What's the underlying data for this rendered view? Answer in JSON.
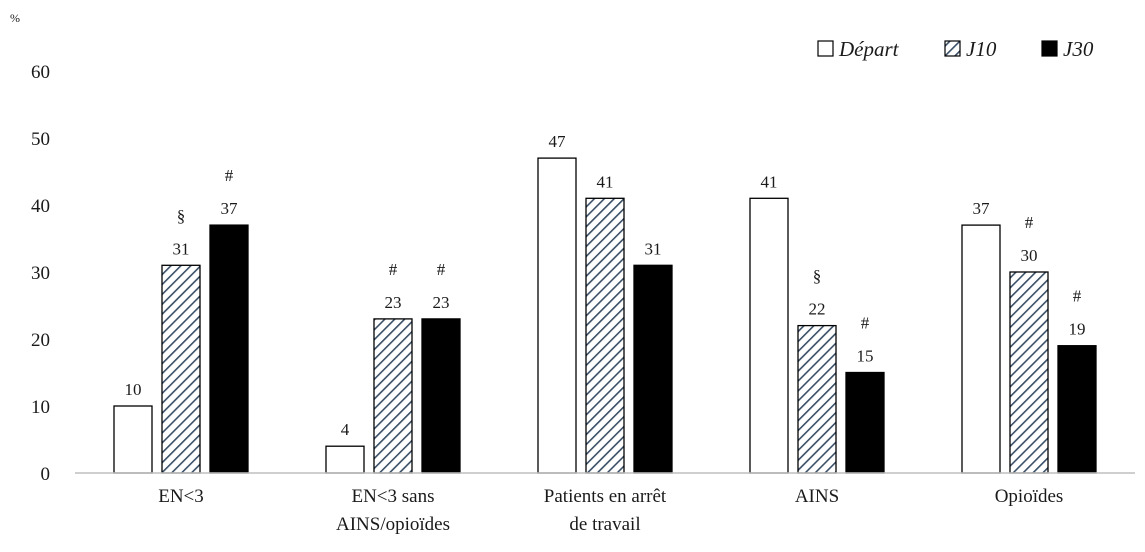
{
  "chart_data": {
    "type": "bar",
    "ylabel": "%",
    "ylim": [
      0,
      60
    ],
    "yticks": [
      0,
      10,
      20,
      30,
      40,
      50,
      60
    ],
    "grid": false,
    "legend": "top-right",
    "categories": [
      [
        "EN<3"
      ],
      [
        "EN<3 sans",
        "AINS/opioïdes"
      ],
      [
        "Patients en arrêt",
        "de travail"
      ],
      [
        "AINS"
      ],
      [
        "Opioïdes"
      ]
    ],
    "series": [
      {
        "name": "Départ",
        "style": "white",
        "color": "#ffffff",
        "values": [
          10,
          4,
          47,
          41,
          37
        ],
        "labels": [
          "10",
          "4",
          "47",
          "41",
          "37"
        ],
        "markers": [
          "",
          "",
          "",
          "",
          ""
        ]
      },
      {
        "name": "J10",
        "style": "hatched",
        "color": "#3a4f66",
        "values": [
          31,
          23,
          41,
          22,
          30
        ],
        "labels": [
          "31",
          "23",
          "41",
          "22",
          "30"
        ],
        "markers": [
          "§",
          "#",
          "",
          "§",
          "#"
        ]
      },
      {
        "name": "J30",
        "style": "black",
        "color": "#000000",
        "values": [
          37,
          23,
          31,
          15,
          19
        ],
        "labels": [
          "37",
          "23",
          "31",
          "15",
          "19"
        ],
        "markers": [
          "#",
          "#",
          "",
          "#",
          "#"
        ]
      }
    ]
  }
}
